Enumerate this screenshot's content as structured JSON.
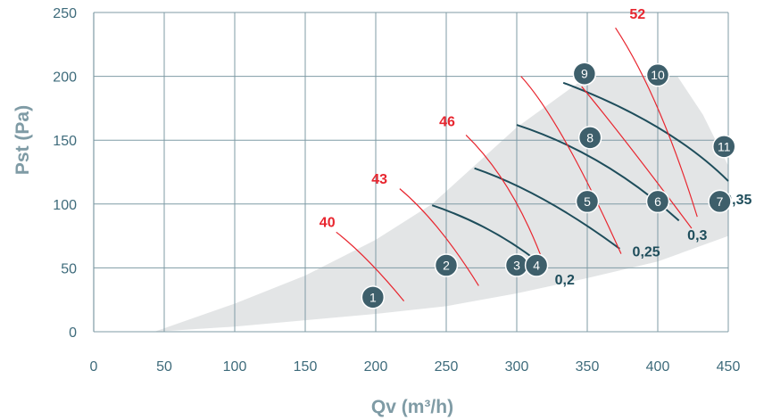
{
  "chart_data": {
    "type": "line",
    "title": "",
    "xlabel": "Qv (m³/h)",
    "ylabel": "Pst (Pa)",
    "xlim": [
      0,
      450
    ],
    "ylim": [
      0,
      250
    ],
    "x_ticks": [
      "0",
      "50",
      "100",
      "150",
      "200",
      "250",
      "300",
      "350",
      "400",
      "450"
    ],
    "y_ticks": [
      "0",
      "50",
      "100",
      "150",
      "200",
      "250"
    ],
    "grid": true,
    "colors": {
      "grid": "#7f9ba5",
      "area": "#e3e5e6",
      "sound": "#e8262f",
      "power": "#1e4d5b",
      "marker": "#3e5f6b",
      "axis_text": "#3e6b7b",
      "axis_title": "#7f9ba5"
    },
    "operating_area": [
      [
        43,
        0
      ],
      [
        100,
        4
      ],
      [
        150,
        9
      ],
      [
        200,
        14
      ],
      [
        250,
        20
      ],
      [
        300,
        30
      ],
      [
        350,
        42
      ],
      [
        400,
        55
      ],
      [
        450,
        75
      ],
      [
        450,
        130
      ],
      [
        432,
        170
      ],
      [
        414,
        200
      ],
      [
        350,
        200
      ],
      [
        325,
        180
      ],
      [
        300,
        160
      ],
      [
        270,
        130
      ],
      [
        240,
        100
      ],
      [
        200,
        72
      ],
      [
        150,
        44
      ],
      [
        100,
        22
      ],
      [
        43,
        0
      ]
    ],
    "sound_power_curves": [
      {
        "label": "40",
        "label_at": [
          160,
          82
        ],
        "points": [
          [
            172,
            78
          ],
          [
            195,
            55
          ],
          [
            220,
            24
          ]
        ]
      },
      {
        "label": "43",
        "label_at": [
          197,
          116
        ],
        "points": [
          [
            217,
            112
          ],
          [
            245,
            80
          ],
          [
            273,
            36
          ]
        ]
      },
      {
        "label": "46",
        "label_at": [
          245,
          161
        ],
        "points": [
          [
            264,
            154
          ],
          [
            295,
            110
          ],
          [
            320,
            51
          ]
        ]
      },
      {
        "label": "52",
        "label_at": [
          380,
          245
        ],
        "points": [
          [
            370,
            238
          ],
          [
            400,
            175
          ],
          [
            428,
            90
          ]
        ]
      },
      {
        "label": "",
        "points": [
          [
            303,
            200
          ],
          [
            335,
            148
          ],
          [
            374,
            61
          ]
        ]
      },
      {
        "label": "",
        "points": [
          [
            346,
            192
          ],
          [
            380,
            145
          ],
          [
            424,
            81
          ]
        ]
      }
    ],
    "power_curves": [
      {
        "label": "0,2",
        "label_at": [
          327,
          37
        ],
        "points": [
          [
            240,
            99
          ],
          [
            280,
            80
          ],
          [
            316,
            54
          ]
        ]
      },
      {
        "label": "0,25",
        "label_at": [
          382,
          59
        ],
        "points": [
          [
            270,
            128
          ],
          [
            320,
            103
          ],
          [
            373,
            65
          ]
        ]
      },
      {
        "label": "0,3",
        "label_at": [
          421,
          72
        ],
        "points": [
          [
            300,
            162
          ],
          [
            360,
            132
          ],
          [
            415,
            87
          ]
        ]
      },
      {
        "label": "0,35",
        "label_at": [
          447,
          100
        ],
        "points": [
          [
            333,
            195
          ],
          [
            400,
            160
          ],
          [
            450,
            118
          ]
        ]
      }
    ],
    "points": [
      {
        "label": "1",
        "x": 198,
        "y": 27
      },
      {
        "label": "2",
        "x": 250,
        "y": 52
      },
      {
        "label": "3",
        "x": 300,
        "y": 52
      },
      {
        "label": "4",
        "x": 314,
        "y": 52
      },
      {
        "label": "5",
        "x": 350,
        "y": 102
      },
      {
        "label": "6",
        "x": 400,
        "y": 102
      },
      {
        "label": "7",
        "x": 444,
        "y": 102
      },
      {
        "label": "8",
        "x": 352,
        "y": 152
      },
      {
        "label": "9",
        "x": 348,
        "y": 202
      },
      {
        "label": "10",
        "x": 400,
        "y": 201
      },
      {
        "label": "11",
        "x": 447,
        "y": 145
      }
    ]
  }
}
